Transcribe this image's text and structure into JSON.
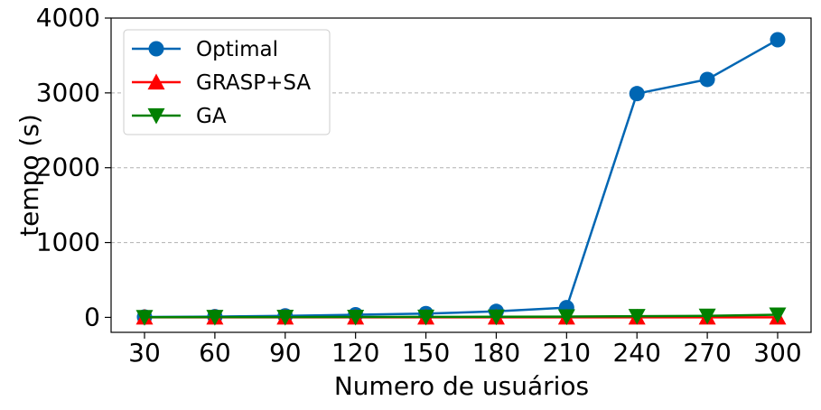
{
  "chart_data": {
    "type": "line",
    "xlabel": "Numero de usuários",
    "ylabel": "tempo (s)",
    "categories": [
      "30",
      "60",
      "90",
      "120",
      "150",
      "180",
      "210",
      "240",
      "270",
      "300"
    ],
    "x": [
      30,
      60,
      90,
      120,
      150,
      180,
      210,
      240,
      270,
      300
    ],
    "ylim": [
      -200,
      4000
    ],
    "yticks": [
      0,
      1000,
      2000,
      3000,
      4000
    ],
    "ytick_labels": [
      "0",
      "1000",
      "2000",
      "3000",
      "4000"
    ],
    "grid": "horizontal dashed",
    "legend_position": "top-left",
    "series": [
      {
        "name": "Optimal",
        "color": "#0066b3",
        "marker": "circle",
        "values": [
          5,
          10,
          20,
          35,
          50,
          80,
          130,
          2990,
          3180,
          3710
        ]
      },
      {
        "name": "GRASP+SA",
        "color": "#ff0000",
        "marker": "triangle-up",
        "values": [
          1,
          1,
          1,
          1,
          1,
          1,
          1,
          1,
          1,
          1
        ]
      },
      {
        "name": "GA",
        "color": "#008000",
        "marker": "triangle-down",
        "values": [
          2,
          3,
          4,
          5,
          6,
          8,
          10,
          15,
          20,
          35
        ]
      }
    ]
  }
}
